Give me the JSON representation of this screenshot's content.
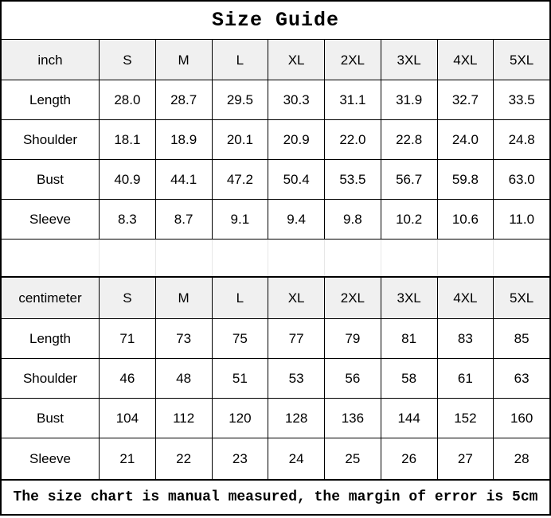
{
  "title": "Size Guide",
  "footer_note": "The size chart is manual measured, the margin of error is 5cm",
  "colors": {
    "grid_border": "#000000",
    "header_bg": "#f0f0f0",
    "spacer_divider": "#e7e7e7",
    "text": "#000000"
  },
  "inch_table": {
    "unit": "inch",
    "sizes": [
      "S",
      "M",
      "L",
      "XL",
      "2XL",
      "3XL",
      "4XL",
      "5XL"
    ],
    "rows": [
      {
        "label": "Length",
        "values": [
          "28.0",
          "28.7",
          "29.5",
          "30.3",
          "31.1",
          "31.9",
          "32.7",
          "33.5"
        ]
      },
      {
        "label": "Shoulder",
        "values": [
          "18.1",
          "18.9",
          "20.1",
          "20.9",
          "22.0",
          "22.8",
          "24.0",
          "24.8"
        ]
      },
      {
        "label": "Bust",
        "values": [
          "40.9",
          "44.1",
          "47.2",
          "50.4",
          "53.5",
          "56.7",
          "59.8",
          "63.0"
        ]
      },
      {
        "label": "Sleeve",
        "values": [
          "8.3",
          "8.7",
          "9.1",
          "9.4",
          "9.8",
          "10.2",
          "10.6",
          "11.0"
        ]
      }
    ]
  },
  "cm_table": {
    "unit": "centimeter",
    "sizes": [
      "S",
      "M",
      "L",
      "XL",
      "2XL",
      "3XL",
      "4XL",
      "5XL"
    ],
    "rows": [
      {
        "label": "Length",
        "values": [
          "71",
          "73",
          "75",
          "77",
          "79",
          "81",
          "83",
          "85"
        ]
      },
      {
        "label": "Shoulder",
        "values": [
          "46",
          "48",
          "51",
          "53",
          "56",
          "58",
          "61",
          "63"
        ]
      },
      {
        "label": "Bust",
        "values": [
          "104",
          "112",
          "120",
          "128",
          "136",
          "144",
          "152",
          "160"
        ]
      },
      {
        "label": "Sleeve",
        "values": [
          "21",
          "22",
          "23",
          "24",
          "25",
          "26",
          "27",
          "28"
        ]
      }
    ]
  },
  "chart_data": [
    {
      "type": "table",
      "title": "Size Guide (inch)",
      "columns": [
        "inch",
        "S",
        "M",
        "L",
        "XL",
        "2XL",
        "3XL",
        "4XL",
        "5XL"
      ],
      "rows": [
        [
          "Length",
          28.0,
          28.7,
          29.5,
          30.3,
          31.1,
          31.9,
          32.7,
          33.5
        ],
        [
          "Shoulder",
          18.1,
          18.9,
          20.1,
          20.9,
          22.0,
          22.8,
          24.0,
          24.8
        ],
        [
          "Bust",
          40.9,
          44.1,
          47.2,
          50.4,
          53.5,
          56.7,
          59.8,
          63.0
        ],
        [
          "Sleeve",
          8.3,
          8.7,
          9.1,
          9.4,
          9.8,
          10.2,
          10.6,
          11.0
        ]
      ]
    },
    {
      "type": "table",
      "title": "Size Guide (centimeter)",
      "columns": [
        "centimeter",
        "S",
        "M",
        "L",
        "XL",
        "2XL",
        "3XL",
        "4XL",
        "5XL"
      ],
      "rows": [
        [
          "Length",
          71,
          73,
          75,
          77,
          79,
          81,
          83,
          85
        ],
        [
          "Shoulder",
          46,
          48,
          51,
          53,
          56,
          58,
          61,
          63
        ],
        [
          "Bust",
          104,
          112,
          120,
          128,
          136,
          144,
          152,
          160
        ],
        [
          "Sleeve",
          21,
          22,
          23,
          24,
          25,
          26,
          27,
          28
        ]
      ]
    }
  ]
}
